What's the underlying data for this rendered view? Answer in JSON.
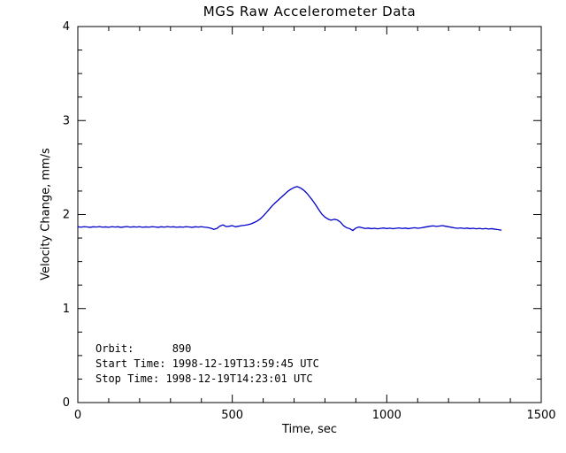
{
  "chart_data": {
    "type": "line",
    "title": "MGS Raw Accelerometer Data",
    "xlabel": "Time, sec",
    "ylabel": "Velocity Change, mm/s",
    "xlim": [
      0,
      1500
    ],
    "ylim": [
      0,
      4
    ],
    "x_major_ticks": [
      0,
      500,
      1000,
      1500
    ],
    "y_major_ticks": [
      0,
      1,
      2,
      3,
      4
    ],
    "x_minor_interval": 100,
    "y_minor_interval": 0.25,
    "grid": false,
    "legend": "none",
    "axis_color": "#000000",
    "background_color": "#ffffff",
    "annotations": [
      "Orbit:      890",
      "Start Time: 1998-12-19T13:59:45 UTC",
      "Stop Time: 1998-12-19T14:23:01 UTC"
    ],
    "series": [
      {
        "name": "velocity_change",
        "color": "#0000cc",
        "x": [
          0,
          10,
          20,
          30,
          40,
          50,
          60,
          70,
          80,
          90,
          100,
          110,
          120,
          130,
          140,
          150,
          160,
          170,
          180,
          190,
          200,
          210,
          220,
          230,
          240,
          250,
          260,
          270,
          280,
          290,
          300,
          310,
          320,
          330,
          340,
          350,
          360,
          370,
          380,
          390,
          400,
          410,
          420,
          430,
          440,
          450,
          460,
          470,
          480,
          490,
          500,
          510,
          520,
          530,
          540,
          550,
          560,
          570,
          580,
          590,
          600,
          610,
          620,
          630,
          640,
          650,
          660,
          670,
          680,
          690,
          700,
          710,
          720,
          730,
          740,
          750,
          760,
          770,
          780,
          790,
          800,
          810,
          820,
          830,
          840,
          850,
          860,
          870,
          880,
          890,
          900,
          910,
          920,
          930,
          940,
          950,
          960,
          970,
          980,
          990,
          1000,
          1010,
          1020,
          1030,
          1040,
          1050,
          1060,
          1070,
          1080,
          1090,
          1100,
          1110,
          1120,
          1130,
          1140,
          1150,
          1160,
          1170,
          1180,
          1190,
          1200,
          1210,
          1220,
          1230,
          1240,
          1250,
          1260,
          1270,
          1280,
          1290,
          1300,
          1310,
          1320,
          1330,
          1340,
          1350,
          1360,
          1370
        ],
        "y": [
          1.87,
          1.866,
          1.871,
          1.868,
          1.864,
          1.87,
          1.867,
          1.872,
          1.866,
          1.869,
          1.865,
          1.871,
          1.867,
          1.87,
          1.864,
          1.869,
          1.872,
          1.866,
          1.87,
          1.867,
          1.871,
          1.865,
          1.869,
          1.866,
          1.871,
          1.868,
          1.864,
          1.87,
          1.866,
          1.872,
          1.867,
          1.87,
          1.865,
          1.869,
          1.866,
          1.871,
          1.868,
          1.864,
          1.87,
          1.867,
          1.871,
          1.866,
          1.862,
          1.855,
          1.842,
          1.852,
          1.878,
          1.89,
          1.872,
          1.876,
          1.882,
          1.87,
          1.876,
          1.882,
          1.886,
          1.892,
          1.9,
          1.914,
          1.93,
          1.952,
          1.984,
          2.02,
          2.058,
          2.096,
          2.128,
          2.158,
          2.188,
          2.218,
          2.248,
          2.27,
          2.288,
          2.298,
          2.284,
          2.262,
          2.232,
          2.192,
          2.15,
          2.102,
          2.052,
          2.004,
          1.972,
          1.952,
          1.94,
          1.95,
          1.942,
          1.92,
          1.882,
          1.86,
          1.85,
          1.83,
          1.856,
          1.868,
          1.86,
          1.852,
          1.856,
          1.85,
          1.854,
          1.848,
          1.853,
          1.857,
          1.851,
          1.855,
          1.849,
          1.854,
          1.858,
          1.852,
          1.856,
          1.85,
          1.855,
          1.86,
          1.854,
          1.858,
          1.864,
          1.87,
          1.876,
          1.88,
          1.874,
          1.878,
          1.882,
          1.876,
          1.87,
          1.864,
          1.858,
          1.854,
          1.858,
          1.852,
          1.856,
          1.85,
          1.854,
          1.848,
          1.853,
          1.847,
          1.852,
          1.846,
          1.85,
          1.844,
          1.84,
          1.834
        ]
      }
    ]
  }
}
